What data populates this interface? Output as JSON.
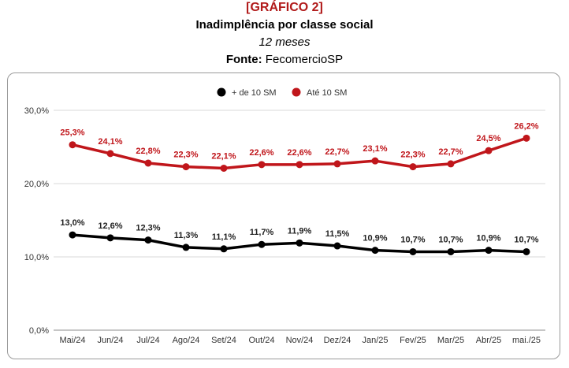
{
  "header": {
    "tag": "[GRÁFICO 2]",
    "title": "Inadimplência por classe social",
    "subtitle": "12 meses",
    "source_label": "Fonte:",
    "source_value": " FecomercioSP"
  },
  "chart_data": {
    "type": "line",
    "title": "Inadimplência por classe social",
    "subtitle": "12 meses",
    "xlabel": "",
    "ylabel": "",
    "ylim": [
      0,
      30
    ],
    "yticks": [
      "0,0%",
      "10,0%",
      "20,0%",
      "30,0%"
    ],
    "grid": true,
    "legend_position": "top",
    "categories": [
      "Mai/24",
      "Jun/24",
      "Jul/24",
      "Ago/24",
      "Set/24",
      "Out/24",
      "Nov/24",
      "Dez/24",
      "Jan/25",
      "Fev/25",
      "Mar/25",
      "Abr/25",
      "mai./25"
    ],
    "series": [
      {
        "name": "+ de 10 SM",
        "color": "#000000",
        "values": [
          13.0,
          12.6,
          12.3,
          11.3,
          11.1,
          11.7,
          11.9,
          11.5,
          10.9,
          10.7,
          10.7,
          10.9,
          10.7
        ],
        "labels": [
          "13,0%",
          "12,6%",
          "12,3%",
          "11,3%",
          "11,1%",
          "11,7%",
          "11,9%",
          "11,5%",
          "10,9%",
          "10,7%",
          "10,7%",
          "10,9%",
          "10,7%"
        ]
      },
      {
        "name": "Até 10 SM",
        "color": "#c0161b",
        "values": [
          25.3,
          24.1,
          22.8,
          22.3,
          22.1,
          22.6,
          22.6,
          22.7,
          23.1,
          22.3,
          22.7,
          24.5,
          26.2
        ],
        "labels": [
          "25,3%",
          "24,1%",
          "22,8%",
          "22,3%",
          "22,1%",
          "22,6%",
          "22,6%",
          "22,7%",
          "23,1%",
          "22,3%",
          "22,7%",
          "24,5%",
          "26,2%"
        ]
      }
    ]
  }
}
